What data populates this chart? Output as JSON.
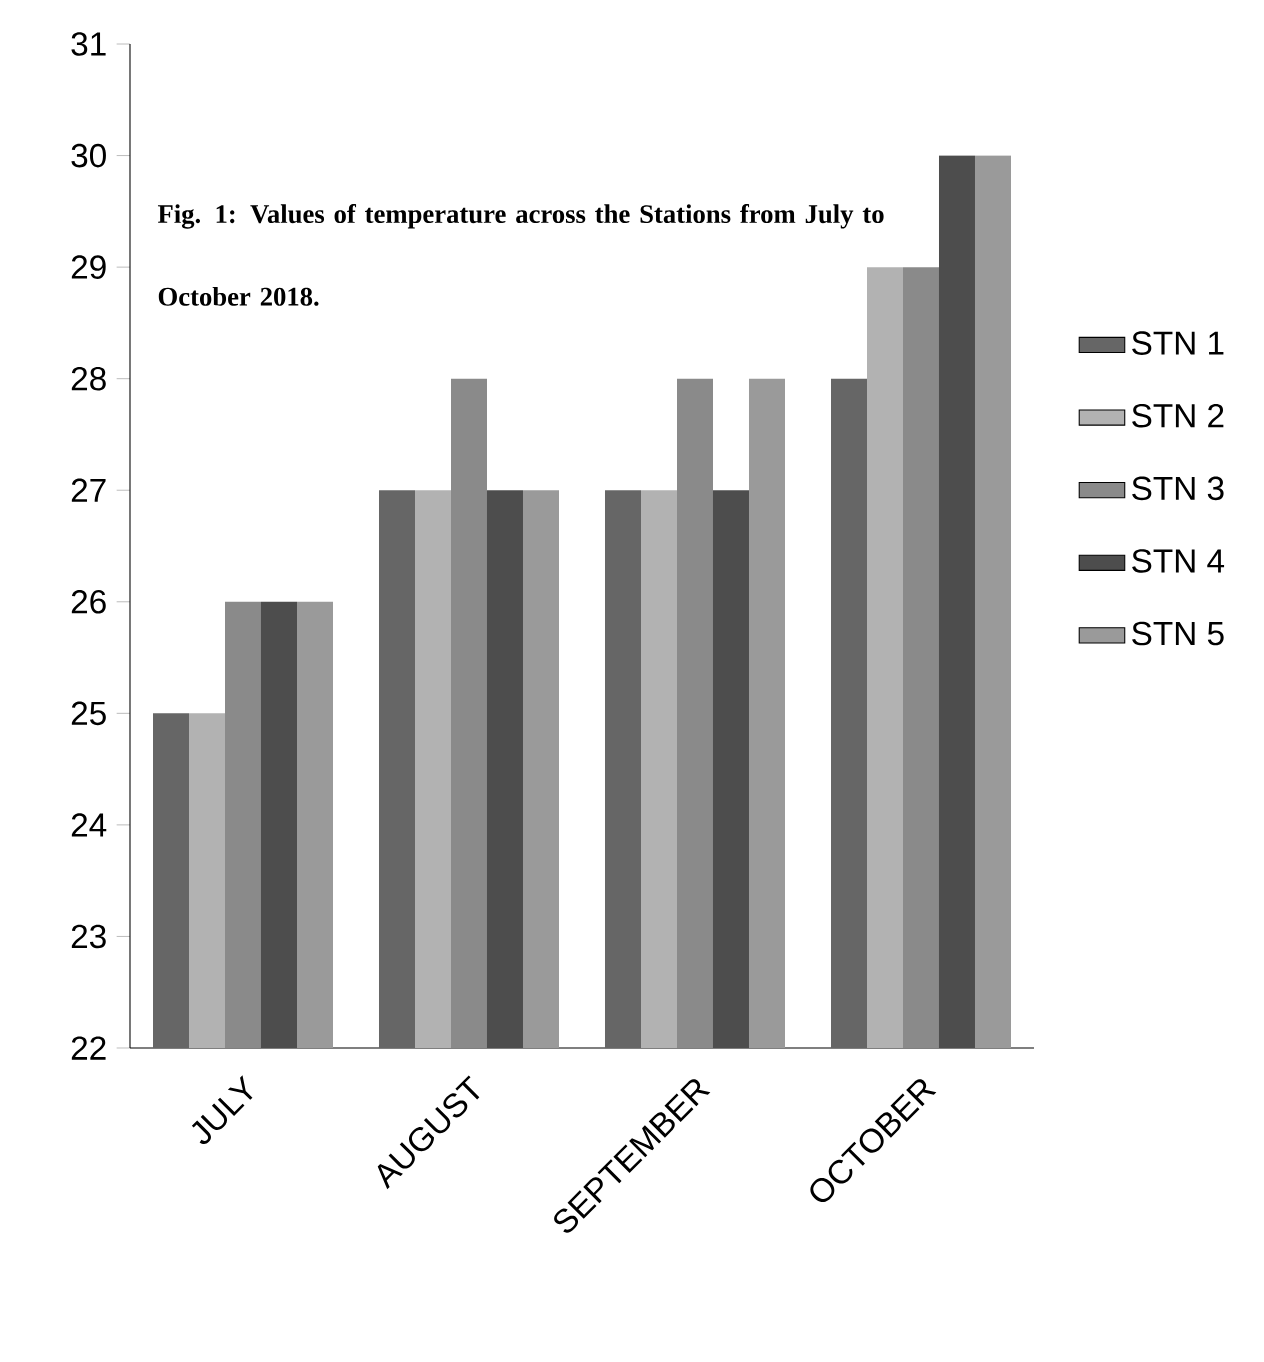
{
  "chart_data": {
    "type": "bar",
    "title": "Fig. 1: Values of temperature across the Stations from July to October 2018.",
    "categories": [
      "JULY",
      "AUGUST",
      "SEPTEMBER",
      "OCTOBER"
    ],
    "series": [
      {
        "name": "STN 1",
        "color": "#666666",
        "values": [
          25,
          27,
          27,
          28
        ]
      },
      {
        "name": "STN 2",
        "color": "#b2b2b2",
        "values": [
          25,
          27,
          27,
          29
        ]
      },
      {
        "name": "STN 3",
        "color": "#8a8a8a",
        "values": [
          26,
          28,
          28,
          29
        ]
      },
      {
        "name": "STN 4",
        "color": "#4d4d4d",
        "values": [
          26,
          27,
          27,
          30
        ]
      },
      {
        "name": "STN 5",
        "color": "#9a9a9a",
        "values": [
          26,
          27,
          28,
          30
        ]
      }
    ],
    "ylim": [
      22,
      31
    ],
    "yticks": [
      22,
      23,
      24,
      25,
      26,
      27,
      28,
      29,
      30,
      31
    ],
    "grid": false,
    "legend": "right"
  }
}
